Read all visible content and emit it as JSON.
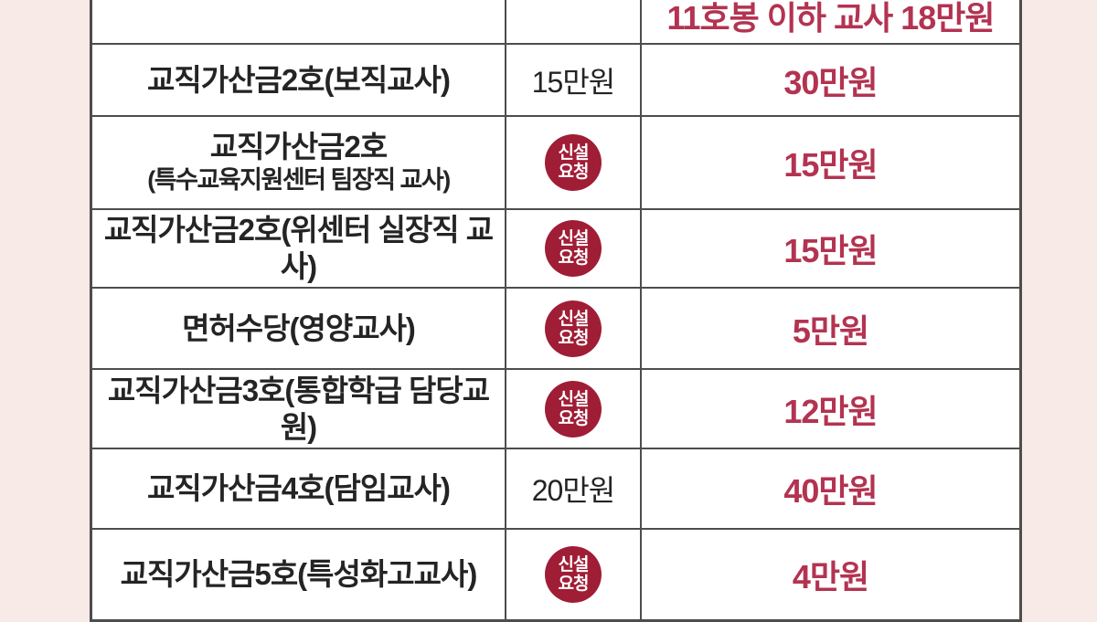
{
  "colors": {
    "page_background": "#f8eae7",
    "cell_background": "#ffffff",
    "grid_border": "#4d4d4d",
    "item_text": "#242424",
    "requested_text": "#b33351",
    "badge_background": "#a01d36",
    "badge_text": "#ffffff"
  },
  "table": {
    "badge_line1": "신설",
    "badge_line2": "요청",
    "rows": [
      {
        "item": "",
        "current": "",
        "has_badge": false,
        "requested": "11호봉 이하 교사 18만원",
        "note": "partial-row-cut-at-top"
      },
      {
        "item": "교직가산금2호(보직교사)",
        "current": "15만원",
        "has_badge": false,
        "requested": "30만원"
      },
      {
        "item": "교직가산금2호",
        "item_sub": "(특수교육지원센터 팀장직 교사)",
        "current": "",
        "has_badge": true,
        "requested": "15만원"
      },
      {
        "item": "교직가산금2호(위센터 실장직 교사)",
        "current": "",
        "has_badge": true,
        "requested": "15만원"
      },
      {
        "item": "면허수당(영양교사)",
        "current": "",
        "has_badge": true,
        "requested": "5만원"
      },
      {
        "item": "교직가산금3호(통합학급 담당교원)",
        "current": "",
        "has_badge": true,
        "requested": "12만원"
      },
      {
        "item": "교직가산금4호(담임교사)",
        "current": "20만원",
        "has_badge": false,
        "requested": "40만원"
      },
      {
        "item": "교직가산금5호(특성화고교사)",
        "current": "",
        "has_badge": true,
        "requested": "4만원",
        "note": "partial-row-cut-at-bottom"
      }
    ]
  }
}
